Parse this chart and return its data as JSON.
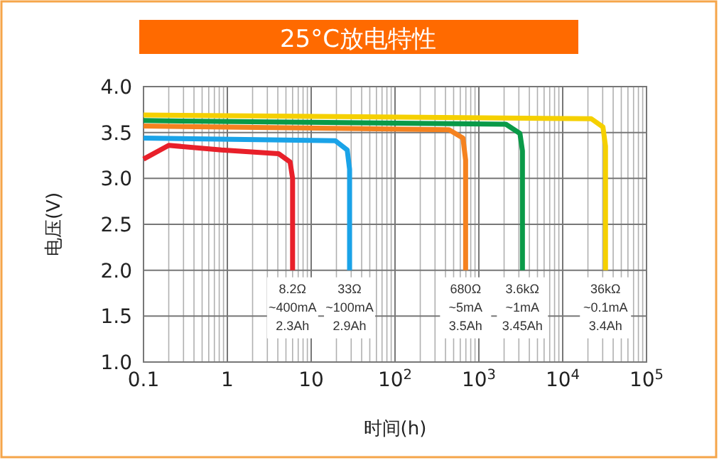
{
  "chart_data": {
    "type": "line",
    "title": "25°C放电特性",
    "xlabel": "时间(h)",
    "ylabel": "电压(V)",
    "log": "x",
    "grid": true,
    "xlim": [
      0.1,
      100000
    ],
    "ylim": [
      1.0,
      4.0
    ],
    "xticks": [
      {
        "value": 0.1,
        "label": "0.1"
      },
      1,
      10,
      {
        "value": 100,
        "label": "10$^{2}$"
      },
      {
        "value": 1000,
        "label": "10$^{3}$"
      },
      {
        "value": 10000,
        "label": "10$^{4}$"
      },
      {
        "value": 100000,
        "label": "10$^{5}$"
      }
    ],
    "yticks": [
      {
        "value": 1.0,
        "label": "1.0"
      },
      1.5,
      {
        "value": 2.0,
        "label": "2.0"
      },
      2.5,
      {
        "value": 3.0,
        "label": "3.0"
      },
      3.5,
      {
        "value": 4.0,
        "label": "4.0"
      }
    ],
    "series": [
      {
        "name": "8.2Ω\n~400mA\n2.3Ah",
        "color": "#e8202a",
        "x": [
          0.1,
          0.2,
          0.85,
          4.07,
          5.6,
          6.0,
          6.0
        ],
        "values": [
          3.21,
          3.36,
          3.31,
          3.27,
          3.18,
          3.0,
          2.0
        ]
      },
      {
        "name": "33Ω\n~100mA\n2.9Ah",
        "color": "#1aa3e8",
        "x": [
          0.1,
          19.4,
          26.9,
          28.7,
          28.7
        ],
        "values": [
          3.44,
          3.41,
          3.31,
          3.1,
          2.0
        ]
      },
      {
        "name": "680Ω\n~5mA\n3.5Ah",
        "color": "#f5821f",
        "x": [
          0.1,
          441,
          646,
          695,
          695
        ],
        "values": [
          3.57,
          3.53,
          3.44,
          3.2,
          2.0
        ]
      },
      {
        "name": "3.6kΩ\n~1mA\n3.45Ah",
        "color": "#0a9a48",
        "x": [
          0.1,
          2100,
          3090,
          3310,
          3310
        ],
        "values": [
          3.63,
          3.59,
          3.49,
          3.3,
          2.0
        ]
      },
      {
        "name": "36kΩ\n~0.1mA\n3.4Ah",
        "color": "#f5d000",
        "x": [
          0.1,
          21900,
          30200,
          32400,
          32400
        ],
        "values": [
          3.69,
          3.65,
          3.56,
          3.35,
          2.0
        ]
      }
    ]
  }
}
